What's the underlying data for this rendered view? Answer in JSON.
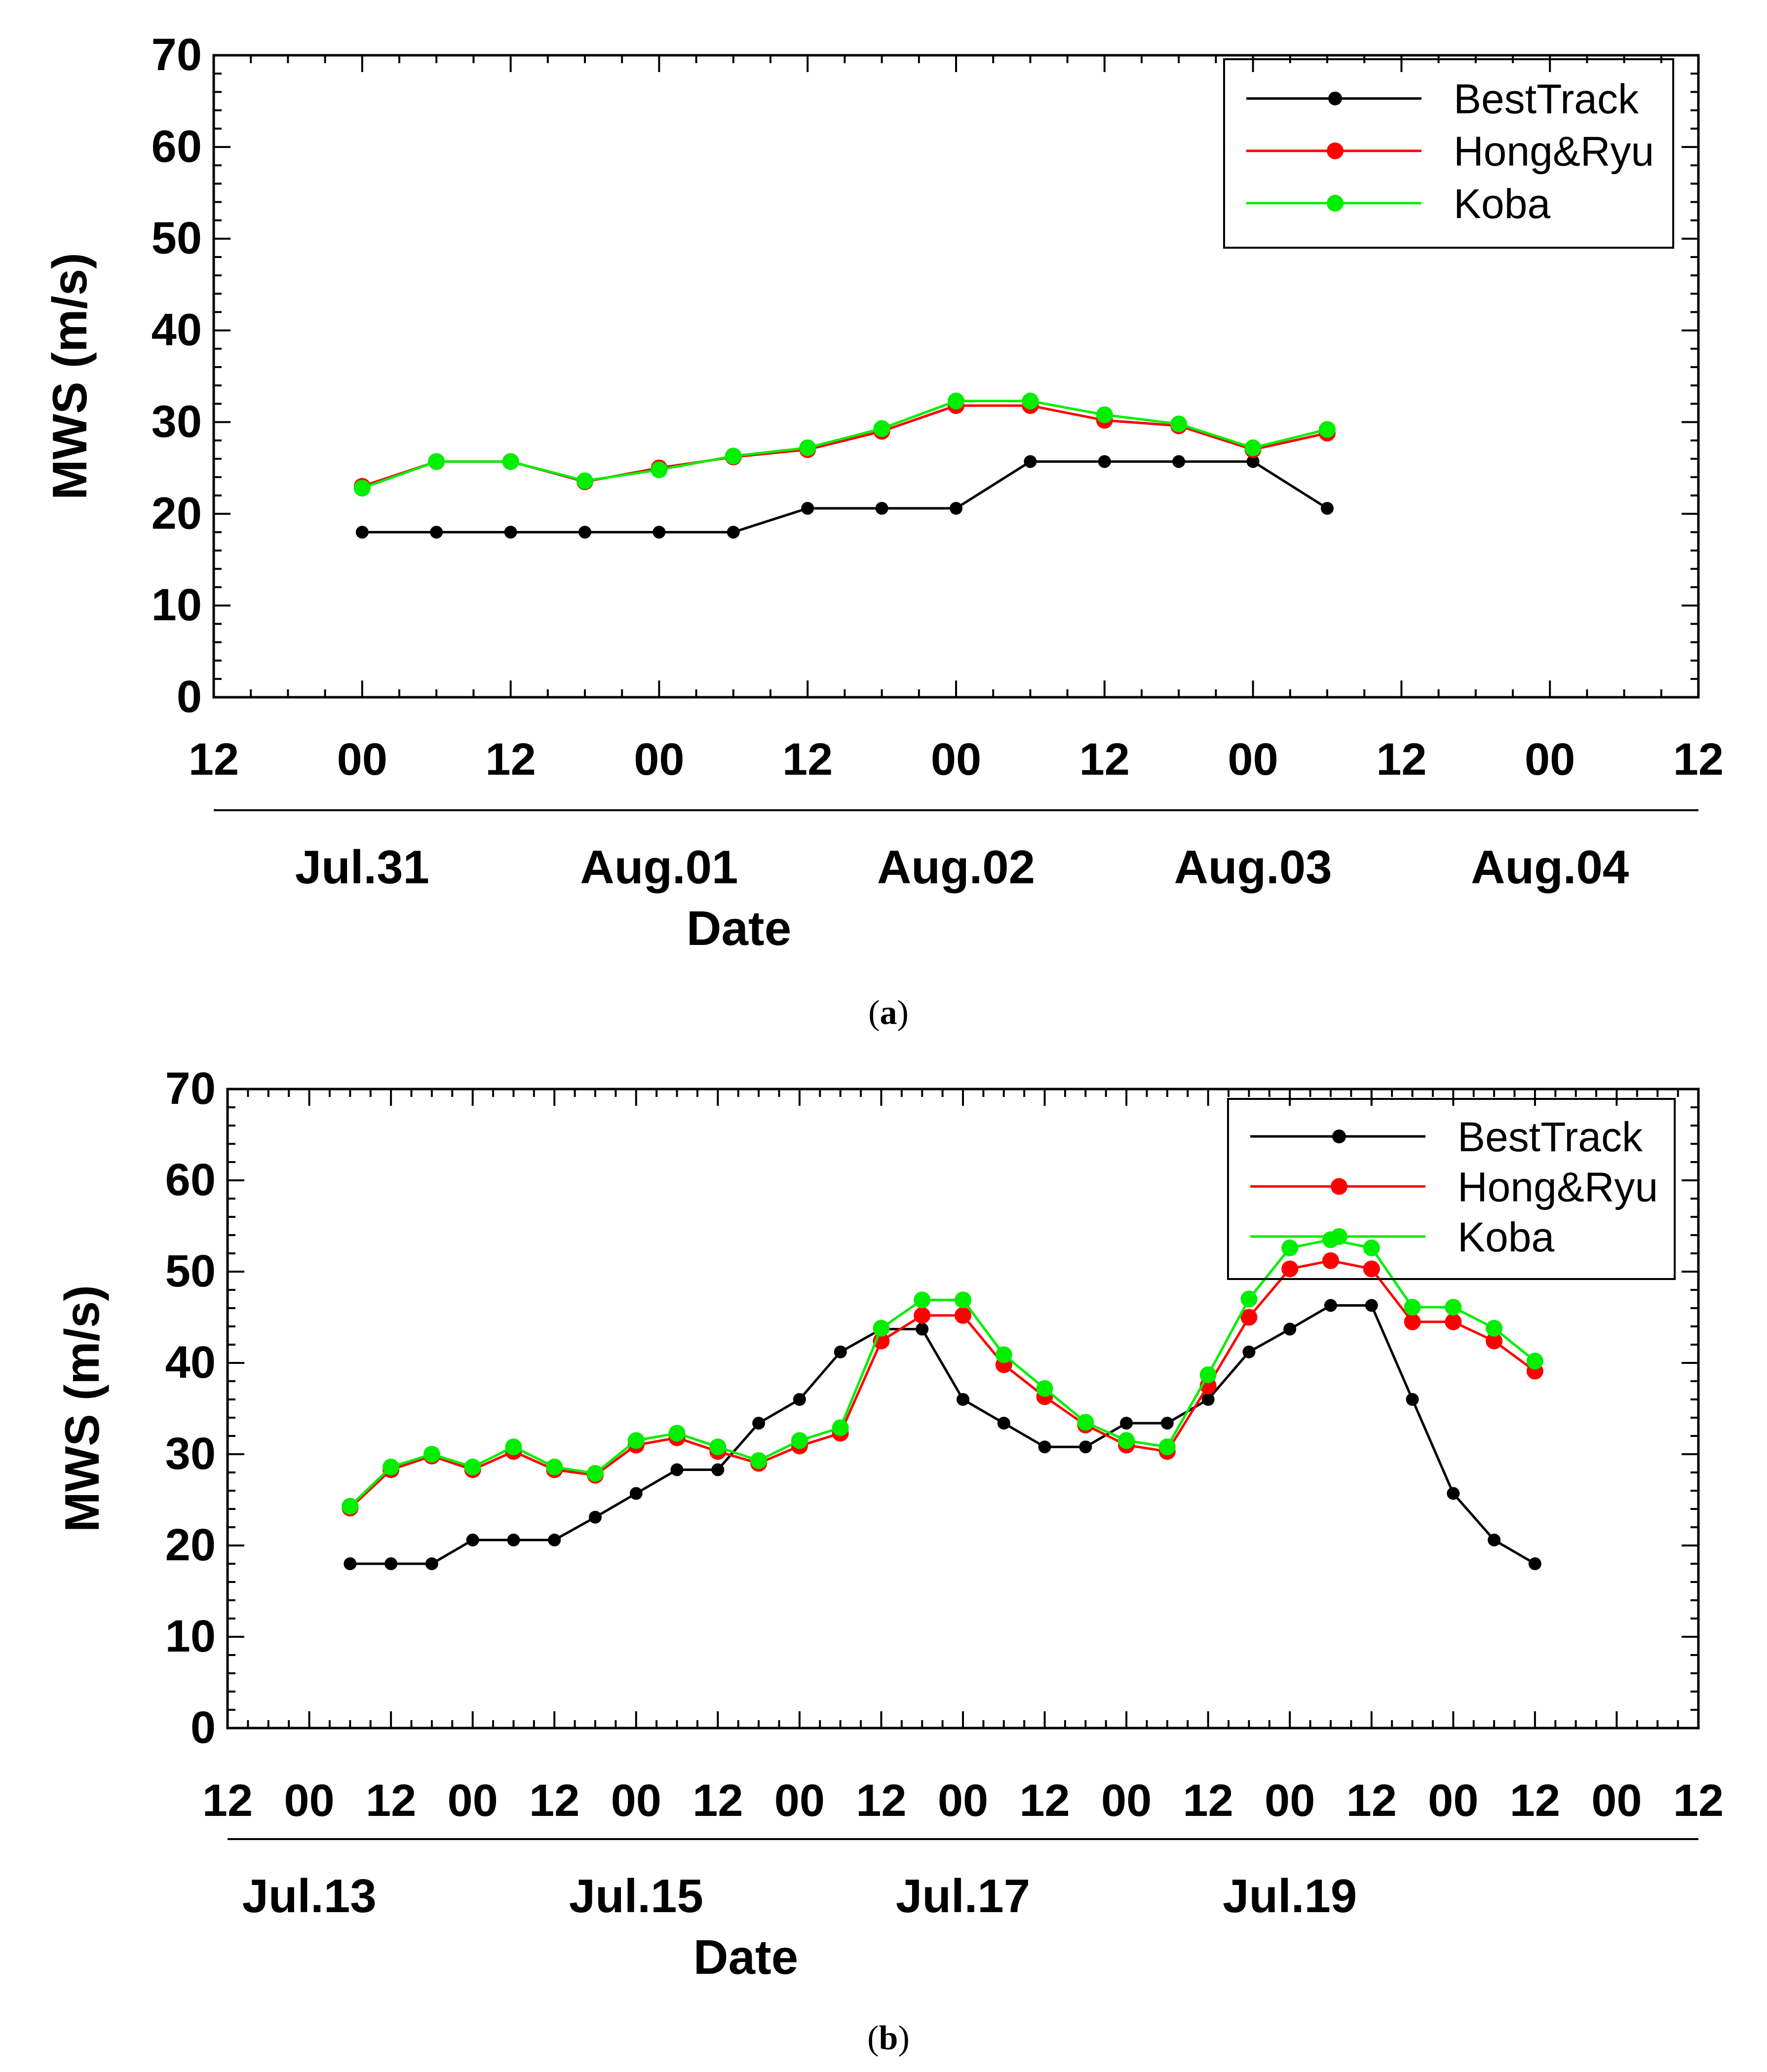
{
  "chart_data": [
    {
      "type": "line",
      "panel_label": "a",
      "xlabel": "Date",
      "ylabel": "MWS (m/s)",
      "ylim": [
        0,
        70
      ],
      "yticks": [
        "0",
        "10",
        "20",
        "30",
        "40",
        "50",
        "60",
        "70"
      ],
      "xlim_hours": [
        -12,
        108
      ],
      "hour_ticks": [
        "12",
        "00",
        "12",
        "00",
        "12",
        "00",
        "12",
        "00",
        "12",
        "00",
        "12"
      ],
      "date_labels": [
        "Jul.31",
        "Aug.01",
        "Aug.02",
        "Aug.03",
        "Aug.04"
      ],
      "legend": [
        "BestTrack",
        "Hong&Ryu",
        "Koba"
      ],
      "legend_position": "top-right",
      "series": [
        {
          "name": "BestTrack",
          "color": "#000000",
          "x": [
            0,
            6,
            12,
            18,
            24,
            30,
            36,
            42,
            48,
            54,
            60,
            66,
            72,
            78
          ],
          "values": [
            18,
            18,
            18,
            18,
            18,
            18,
            20.6,
            20.6,
            20.6,
            25.7,
            25.7,
            25.7,
            25.7,
            20.6
          ]
        },
        {
          "name": "Hong&Ryu",
          "color": "#ff0000",
          "x": [
            0,
            6,
            12,
            18,
            24,
            30,
            36,
            42,
            48,
            54,
            60,
            66,
            72,
            78
          ],
          "values": [
            23,
            25.7,
            25.7,
            23.5,
            25,
            26.2,
            27,
            29,
            31.8,
            31.8,
            30.2,
            29.6,
            27,
            28.8
          ]
        },
        {
          "name": "Koba",
          "color": "#00ee00",
          "x": [
            0,
            6,
            12,
            18,
            24,
            30,
            36,
            42,
            48,
            54,
            60,
            66,
            72,
            78
          ],
          "values": [
            22.8,
            25.7,
            25.7,
            23.6,
            24.8,
            26.3,
            27.2,
            29.3,
            32.3,
            32.3,
            30.8,
            29.8,
            27.2,
            29.2
          ]
        }
      ]
    },
    {
      "type": "line",
      "panel_label": "b",
      "xlabel": "Date",
      "ylabel": "MWS (m/s)",
      "ylim": [
        0,
        70
      ],
      "yticks": [
        "0",
        "10",
        "20",
        "30",
        "40",
        "50",
        "60",
        "70"
      ],
      "xlim_hours": [
        -12,
        204
      ],
      "hour_ticks": [
        "12",
        "00",
        "12",
        "00",
        "12",
        "00",
        "12",
        "00",
        "12",
        "00",
        "12",
        "00",
        "12",
        "00",
        "12",
        "00",
        "12",
        "00",
        "12"
      ],
      "date_labels": [
        "Jul.13",
        "Jul.15",
        "Jul.17",
        "Jul.19"
      ],
      "legend": [
        "BestTrack",
        "Hong&Ryu",
        "Koba"
      ],
      "legend_position": "top-right",
      "series": [
        {
          "name": "BestTrack",
          "color": "#000000",
          "x": [
            6,
            12,
            18,
            24,
            30,
            36,
            42,
            48,
            54,
            60,
            66,
            72,
            78,
            84,
            90,
            96,
            102,
            108,
            114,
            120,
            126,
            132,
            138,
            144,
            150,
            156,
            162,
            168,
            174,
            180
          ],
          "values": [
            18,
            18,
            18,
            20.6,
            20.6,
            20.6,
            23.1,
            25.7,
            28.3,
            28.3,
            33.4,
            36,
            41.2,
            43.7,
            43.7,
            36,
            33.4,
            30.8,
            30.8,
            33.4,
            33.4,
            36,
            41.2,
            43.7,
            46.3,
            46.3,
            36,
            25.7,
            20.6,
            18
          ]
        },
        {
          "name": "Hong&Ryu",
          "color": "#ff0000",
          "x": [
            6,
            12,
            18,
            24,
            30,
            36,
            42,
            48,
            54,
            60,
            66,
            72,
            78,
            84,
            90,
            96,
            102,
            108,
            114,
            120,
            126,
            132,
            138,
            144,
            150,
            156,
            162,
            168,
            174,
            180
          ],
          "values": [
            24.1,
            28.3,
            29.8,
            28.3,
            30.3,
            28.3,
            27.7,
            31,
            31.8,
            30.3,
            29,
            30.9,
            32.3,
            42.4,
            45.2,
            45.2,
            39.8,
            36.3,
            33.2,
            31,
            30.3,
            37.5,
            45,
            50.3,
            51.2,
            50.3,
            44.5,
            44.5,
            42.4,
            39.1
          ]
        },
        {
          "name": "Koba",
          "color": "#00ee00",
          "x": [
            6,
            12,
            18,
            24,
            30,
            36,
            42,
            48,
            54,
            60,
            66,
            72,
            78,
            84,
            90,
            96,
            102,
            108,
            114,
            120,
            126,
            132,
            138,
            144,
            150,
            156,
            162,
            168,
            174,
            180
          ],
          "values": [
            24.3,
            28.6,
            30,
            28.6,
            30.8,
            28.6,
            27.9,
            31.5,
            32.3,
            30.8,
            29.3,
            31.5,
            32.9,
            43.8,
            46.9,
            46.9,
            40.9,
            37.2,
            33.5,
            31.5,
            30.8,
            38.7,
            47,
            52.6,
            53.5,
            52.6,
            46.1,
            46.1,
            43.8,
            40.2
          ]
        }
      ]
    }
  ]
}
